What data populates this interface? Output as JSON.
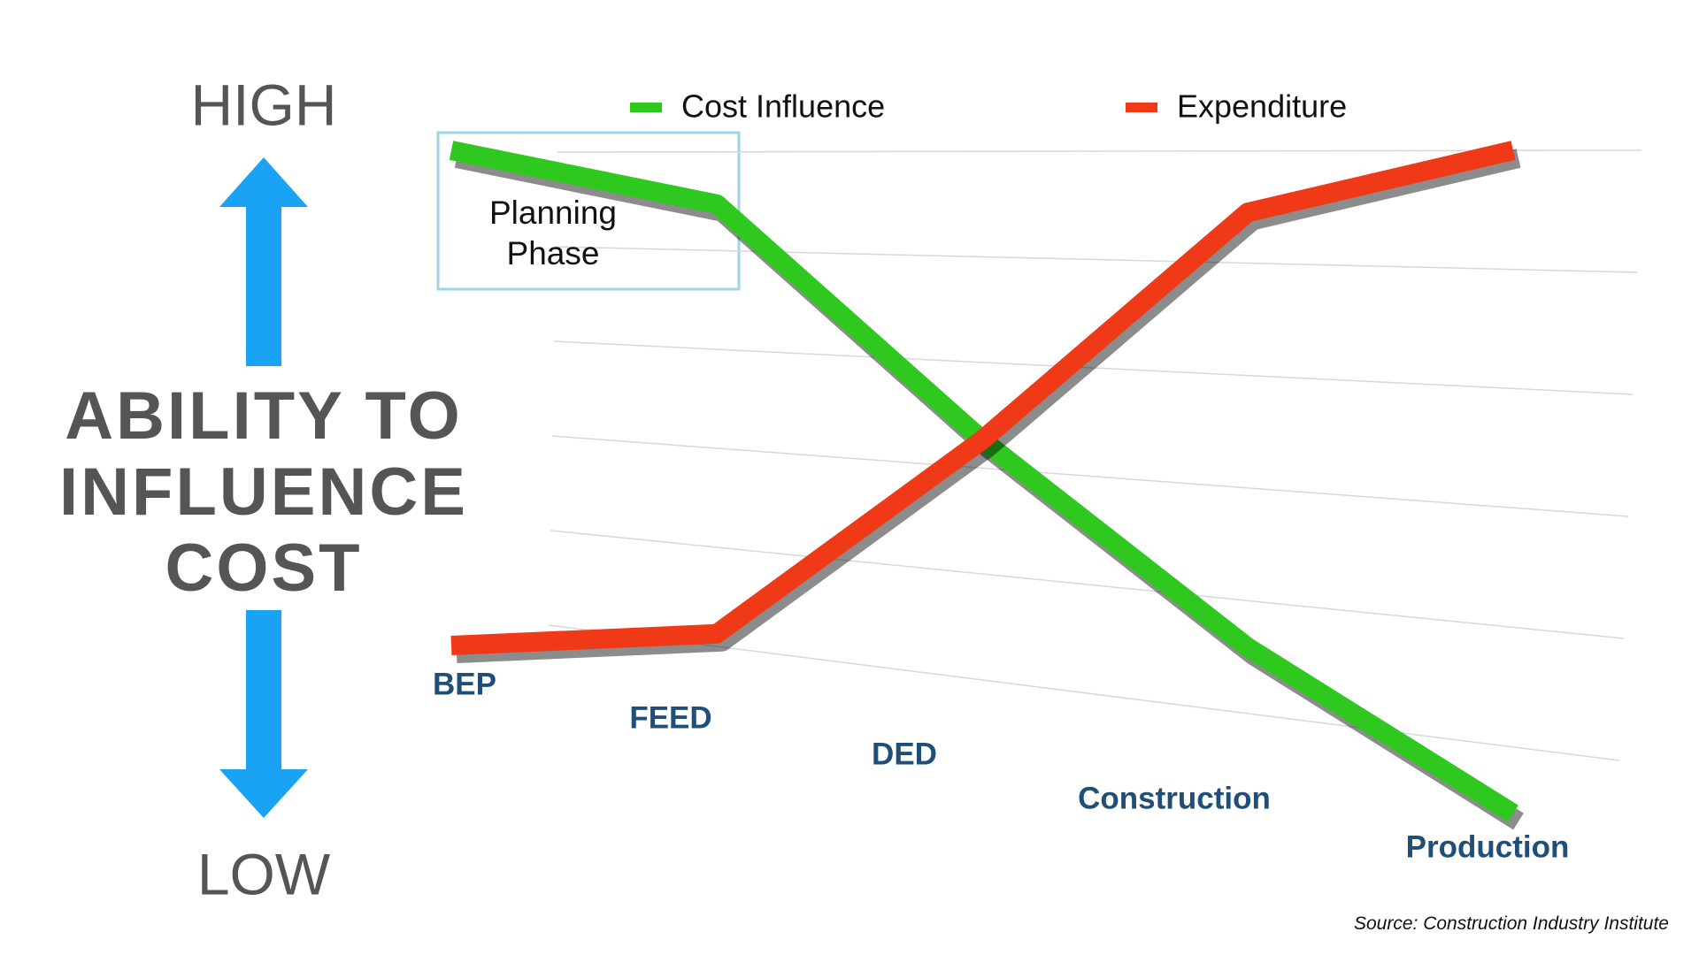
{
  "chart_data": {
    "type": "line",
    "high_label": "HIGH",
    "low_label": "LOW",
    "ylabel": "ABILITY TO INFLUENCE COST",
    "annotation": "Planning Phase",
    "source": "Source: Construction Industry Institute",
    "categories": [
      "BEP",
      "FEED",
      "DED",
      "Construction",
      "Production"
    ],
    "ylim": [
      0,
      100
    ],
    "grid": true,
    "legend": "top",
    "series": [
      {
        "name": "Cost Influence",
        "color": "#2ec81e",
        "values": [
          100,
          90,
          50,
          20,
          0
        ]
      },
      {
        "name": "Expenditure",
        "color": "#f03a17",
        "values": [
          0,
          10,
          50,
          90,
          100
        ]
      }
    ]
  }
}
